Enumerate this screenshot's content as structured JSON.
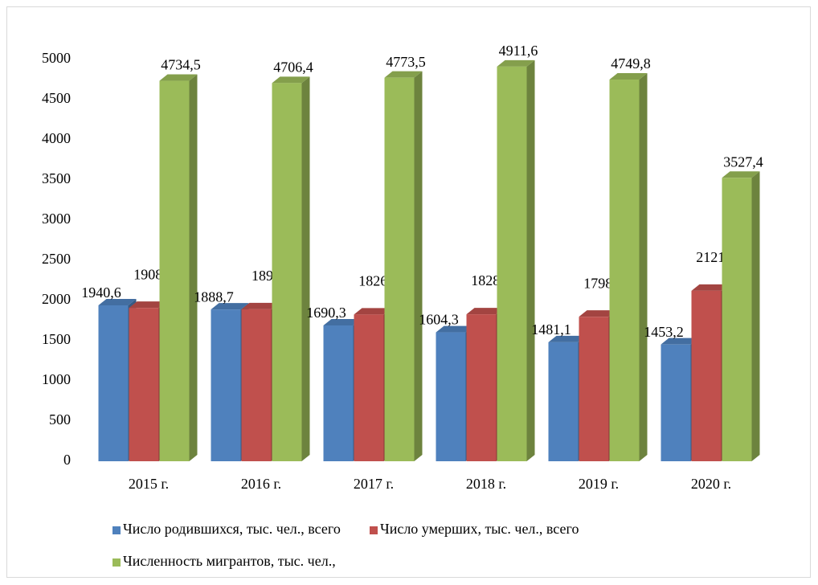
{
  "chart_data": {
    "type": "bar3d",
    "categories": [
      "2015 г.",
      "2016 г.",
      "2017 г.",
      "2018 г.",
      "2019 г.",
      "2020 г."
    ],
    "series": [
      {
        "name": "Число родившихся, тыс. чел., всего",
        "color": "#4f81bd",
        "values": [
          1940.6,
          1888.7,
          1690.3,
          1604.3,
          1481.1,
          1453.2
        ],
        "value_labels": [
          "1940,6",
          "1888,7",
          "1690,3",
          "1604,3",
          "1481,1",
          "1453,2"
        ]
      },
      {
        "name": "Число умерших, тыс. чел., всего",
        "color": "#c0504d",
        "values": [
          1908.5,
          1891,
          1826.1,
          1828.9,
          1798.3,
          2121.2
        ],
        "value_labels": [
          "1908,5",
          "1891",
          "1826,1",
          "1828,9",
          "1798,3",
          "2121,2"
        ]
      },
      {
        "name": "Численность мигрантов, тыс. чел.,",
        "color": "#9bbb59",
        "values": [
          4734.5,
          4706.4,
          4773.5,
          4911.6,
          4749.8,
          3527.4
        ],
        "value_labels": [
          "4734,5",
          "4706,4",
          "4773,5",
          "4911,6",
          "4749,8",
          "3527,4"
        ]
      }
    ],
    "ylim": [
      0,
      5000
    ],
    "yticks": [
      0,
      500,
      1000,
      1500,
      2000,
      2500,
      3000,
      3500,
      4000,
      4500,
      5000
    ],
    "grid": false
  }
}
